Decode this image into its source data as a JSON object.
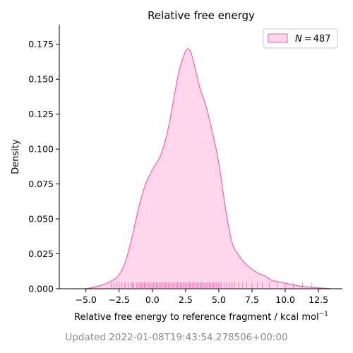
{
  "chart_data": {
    "type": "area",
    "title": "Relative free energy",
    "xlabel": "Relative free energy to reference fragment / kcal mol",
    "xlabel_superscript": "−1",
    "ylabel": "Density",
    "xlim": [
      -7.0,
      14.3
    ],
    "ylim": [
      0.0,
      0.189
    ],
    "xticks": [
      -5.0,
      -2.5,
      0.0,
      2.5,
      5.0,
      7.5,
      10.0,
      12.5
    ],
    "xtick_labels": [
      "−5.0",
      "−2.5",
      "0.0",
      "2.5",
      "5.0",
      "7.5",
      "10.0",
      "12.5"
    ],
    "yticks": [
      0.0,
      0.025,
      0.05,
      0.075,
      0.1,
      0.125,
      0.15,
      0.175
    ],
    "ytick_labels": [
      "0.000",
      "0.025",
      "0.050",
      "0.075",
      "0.100",
      "0.125",
      "0.150",
      "0.175"
    ],
    "grid": false,
    "legend": {
      "placement": "top-right",
      "prefix": "N",
      "value": "487"
    },
    "series": [
      {
        "fill_color": "#ffd6ec",
        "line_color": "#f060b0",
        "x": [
          -5.0,
          -4.0,
          -3.0,
          -2.5,
          -2.0,
          -1.5,
          -1.0,
          -0.5,
          0.0,
          0.5,
          0.8,
          1.2,
          1.5,
          2.0,
          2.5,
          2.8,
          3.0,
          3.3,
          3.6,
          4.0,
          4.5,
          5.0,
          5.5,
          6.0,
          6.5,
          7.0,
          7.5,
          8.0,
          8.5,
          9.0,
          9.5,
          10.0,
          10.5,
          11.0,
          12.0,
          13.5
        ],
        "y": [
          0.0,
          0.002,
          0.006,
          0.01,
          0.02,
          0.038,
          0.059,
          0.075,
          0.085,
          0.093,
          0.1,
          0.115,
          0.13,
          0.155,
          0.17,
          0.171,
          0.166,
          0.155,
          0.143,
          0.132,
          0.113,
          0.09,
          0.058,
          0.033,
          0.024,
          0.018,
          0.014,
          0.011,
          0.009,
          0.006,
          0.005,
          0.004,
          0.003,
          0.002,
          0.001,
          0.0
        ]
      }
    ],
    "rug": {
      "color": "#f060b0",
      "values": [
        -3.1,
        -2.9,
        -2.7,
        -2.5,
        -2.3,
        -2.1,
        -2.0,
        -1.8,
        -1.6,
        -1.5,
        -1.4,
        -1.2,
        -1.1,
        -1.0,
        -0.9,
        -0.8,
        -0.7,
        -0.6,
        -0.5,
        -0.4,
        -0.3,
        -0.2,
        -0.1,
        0.0,
        0.1,
        0.2,
        0.3,
        0.4,
        0.5,
        0.6,
        0.7,
        0.8,
        0.9,
        1.0,
        1.1,
        1.2,
        1.3,
        1.4,
        1.5,
        1.6,
        1.7,
        1.8,
        1.9,
        2.0,
        2.1,
        2.2,
        2.3,
        2.4,
        2.5,
        2.6,
        2.7,
        2.8,
        2.9,
        3.0,
        3.1,
        3.2,
        3.3,
        3.4,
        3.5,
        3.6,
        3.7,
        3.8,
        3.9,
        4.0,
        4.1,
        4.2,
        4.3,
        4.4,
        4.5,
        4.6,
        4.7,
        4.8,
        4.9,
        5.0,
        5.1,
        5.2,
        5.4,
        5.6,
        5.8,
        6.0,
        6.2,
        6.5,
        6.8,
        7.1,
        7.5,
        7.9,
        8.3,
        8.8,
        9.4,
        10.0,
        10.6,
        11.3,
        12.0
      ]
    }
  },
  "footer": {
    "updated_text": "Updated 2022-01-08T19:43:54.278506+00:00"
  }
}
